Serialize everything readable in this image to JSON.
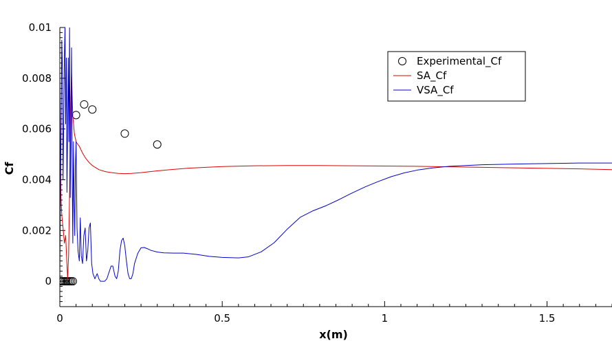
{
  "chart_data": {
    "type": "line",
    "xlabel": "x(m)",
    "ylabel": "Cf",
    "xlim": [
      0,
      1.7
    ],
    "ylim": [
      -0.001,
      0.01
    ],
    "x_ticks": [
      0,
      0.5,
      1,
      1.5
    ],
    "x_tick_labels": [
      "0",
      "0.5",
      "1",
      "1.5"
    ],
    "y_ticks": [
      0,
      0.002,
      0.004,
      0.006,
      0.008,
      0.01
    ],
    "y_tick_labels": [
      "0",
      "0.002",
      "0.004",
      "0.006",
      "0.008",
      "0.01"
    ],
    "grid": false,
    "legend_position": "top-right",
    "series": [
      {
        "name": "Experimental_Cf",
        "style": "markers",
        "marker": "circle",
        "color": "#000000",
        "points": [
          [
            0.0,
            0.0
          ],
          [
            0.005,
            0.0
          ],
          [
            0.01,
            0.0
          ],
          [
            0.015,
            0.0
          ],
          [
            0.02,
            0.0
          ],
          [
            0.025,
            0.0
          ],
          [
            0.03,
            0.0
          ],
          [
            0.035,
            0.0
          ],
          [
            0.04,
            0.0
          ],
          [
            0.05,
            0.00655
          ],
          [
            0.075,
            0.00697
          ],
          [
            0.1,
            0.00677
          ],
          [
            0.2,
            0.00582
          ],
          [
            0.3,
            0.00539
          ]
        ]
      },
      {
        "name": "SA_Cf",
        "style": "line",
        "color": "#dd0000",
        "points": [
          [
            0.0,
            0.0088
          ],
          [
            0.003,
            0.0035
          ],
          [
            0.006,
            0.0026
          ],
          [
            0.01,
            0.0021
          ],
          [
            0.014,
            0.0015
          ],
          [
            0.018,
            0.0018
          ],
          [
            0.021,
            0.0009
          ],
          [
            0.024,
            0.0001
          ],
          [
            0.027,
            0.001
          ],
          [
            0.03,
            0.0035
          ],
          [
            0.033,
            0.0068
          ],
          [
            0.036,
            0.0082
          ],
          [
            0.04,
            0.0065
          ],
          [
            0.045,
            0.0058
          ],
          [
            0.05,
            0.0055
          ],
          [
            0.055,
            0.0054
          ],
          [
            0.06,
            0.00532
          ],
          [
            0.07,
            0.00505
          ],
          [
            0.08,
            0.00484
          ],
          [
            0.09,
            0.00468
          ],
          [
            0.1,
            0.00456
          ],
          [
            0.12,
            0.0044
          ],
          [
            0.14,
            0.00432
          ],
          [
            0.16,
            0.00428
          ],
          [
            0.18,
            0.00425
          ],
          [
            0.2,
            0.00424
          ],
          [
            0.22,
            0.00425
          ],
          [
            0.25,
            0.00428
          ],
          [
            0.3,
            0.00435
          ],
          [
            0.35,
            0.00441
          ],
          [
            0.4,
            0.00446
          ],
          [
            0.5,
            0.00452
          ],
          [
            0.6,
            0.00455
          ],
          [
            0.7,
            0.00456
          ],
          [
            0.8,
            0.00456
          ],
          [
            0.9,
            0.00455
          ],
          [
            1.0,
            0.00454
          ],
          [
            1.1,
            0.00453
          ],
          [
            1.2,
            0.00451
          ],
          [
            1.3,
            0.00449
          ],
          [
            1.4,
            0.00447
          ],
          [
            1.5,
            0.00445
          ],
          [
            1.6,
            0.00443
          ],
          [
            1.7,
            0.0044
          ]
        ]
      },
      {
        "name": "VSA_Cf",
        "style": "line",
        "color": "#0000cc",
        "points": [
          [
            0.0,
            0.0
          ],
          [
            0.002,
            0.0038
          ],
          [
            0.004,
            0.0062
          ],
          [
            0.006,
            0.0095
          ],
          [
            0.008,
            0.0083
          ],
          [
            0.01,
            0.004
          ],
          [
            0.012,
            0.0063
          ],
          [
            0.014,
            0.0088
          ],
          [
            0.016,
            0.01
          ],
          [
            0.018,
            0.0062
          ],
          [
            0.02,
            0.0088
          ],
          [
            0.022,
            0.0035
          ],
          [
            0.024,
            0.006
          ],
          [
            0.026,
            0.0088
          ],
          [
            0.028,
            0.0055
          ],
          [
            0.03,
            0.01
          ],
          [
            0.032,
            0.0033
          ],
          [
            0.034,
            0.006
          ],
          [
            0.036,
            0.0092
          ],
          [
            0.038,
            0.0042
          ],
          [
            0.04,
            0.0015
          ],
          [
            0.042,
            0.0055
          ],
          [
            0.044,
            0.0032
          ],
          [
            0.046,
            0.0018
          ],
          [
            0.048,
            0.0045
          ],
          [
            0.05,
            0.0055
          ],
          [
            0.053,
            0.0021
          ],
          [
            0.056,
            0.0012
          ],
          [
            0.06,
            0.0008
          ],
          [
            0.063,
            0.0025
          ],
          [
            0.066,
            0.001
          ],
          [
            0.07,
            0.0007
          ],
          [
            0.074,
            0.0018
          ],
          [
            0.078,
            0.0021
          ],
          [
            0.082,
            0.0008
          ],
          [
            0.086,
            0.0012
          ],
          [
            0.09,
            0.0021
          ],
          [
            0.094,
            0.0023
          ],
          [
            0.098,
            0.0007
          ],
          [
            0.102,
            0.0003
          ],
          [
            0.108,
            0.0001
          ],
          [
            0.115,
            0.0003
          ],
          [
            0.12,
            0.0001
          ],
          [
            0.125,
            0.0
          ],
          [
            0.13,
            0.0
          ],
          [
            0.138,
            0.0
          ],
          [
            0.145,
            0.0001
          ],
          [
            0.15,
            0.0003
          ],
          [
            0.158,
            0.0006
          ],
          [
            0.163,
            0.0006
          ],
          [
            0.17,
            0.0002
          ],
          [
            0.175,
            0.0001
          ],
          [
            0.18,
            0.0004
          ],
          [
            0.185,
            0.0012
          ],
          [
            0.19,
            0.0016
          ],
          [
            0.195,
            0.0017
          ],
          [
            0.2,
            0.0014
          ],
          [
            0.205,
            0.0008
          ],
          [
            0.21,
            0.0003
          ],
          [
            0.215,
            0.0001
          ],
          [
            0.22,
            0.0001
          ],
          [
            0.225,
            0.0003
          ],
          [
            0.23,
            0.0007
          ],
          [
            0.24,
            0.0011
          ],
          [
            0.25,
            0.00132
          ],
          [
            0.26,
            0.00133
          ],
          [
            0.27,
            0.00128
          ],
          [
            0.28,
            0.00122
          ],
          [
            0.3,
            0.00115
          ],
          [
            0.32,
            0.00112
          ],
          [
            0.35,
            0.00111
          ],
          [
            0.38,
            0.00111
          ],
          [
            0.42,
            0.00106
          ],
          [
            0.46,
            0.00098
          ],
          [
            0.5,
            0.00094
          ],
          [
            0.55,
            0.00092
          ],
          [
            0.58,
            0.00096
          ],
          [
            0.62,
            0.00116
          ],
          [
            0.66,
            0.00152
          ],
          [
            0.7,
            0.00205
          ],
          [
            0.74,
            0.00252
          ],
          [
            0.78,
            0.00278
          ],
          [
            0.82,
            0.00298
          ],
          [
            0.86,
            0.00322
          ],
          [
            0.9,
            0.00348
          ],
          [
            0.94,
            0.00372
          ],
          [
            0.98,
            0.00393
          ],
          [
            1.02,
            0.00412
          ],
          [
            1.06,
            0.00427
          ],
          [
            1.1,
            0.00438
          ],
          [
            1.15,
            0.00447
          ],
          [
            1.2,
            0.00453
          ],
          [
            1.3,
            0.00459
          ],
          [
            1.4,
            0.00462
          ],
          [
            1.5,
            0.00464
          ],
          [
            1.6,
            0.00466
          ],
          [
            1.7,
            0.00466
          ]
        ]
      }
    ]
  }
}
